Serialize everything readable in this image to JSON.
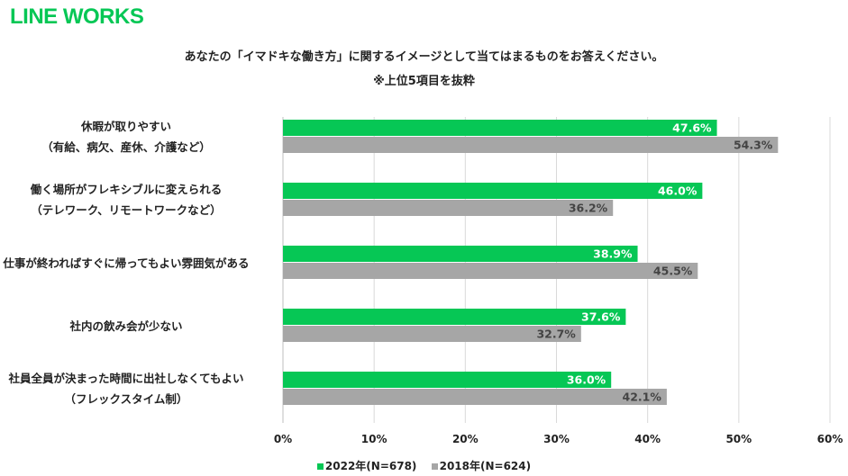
{
  "logo": "LINE WORKS",
  "chart_data": {
    "type": "bar",
    "orientation": "horizontal",
    "title": "あなたの「イマドキな働き方」に関するイメージとして当てはまるものをお答えください。",
    "subtitle": "※上位5項目を抜粋",
    "categories": [
      [
        "休暇が取りやすい",
        "（有給、病欠、産休、介護など）"
      ],
      [
        "働く場所がフレキシブルに変えられる",
        "（テレワーク、リモートワークなど）"
      ],
      [
        "仕事が終わればすぐに帰ってもよい雰囲気がある"
      ],
      [
        "社内の飲み会が少ない"
      ],
      [
        "社員全員が決まった時間に出社しなくてもよい",
        "（フレックスタイム制）"
      ]
    ],
    "series": [
      {
        "name": "2022年(N=678)",
        "color": "#06c755",
        "values": [
          47.6,
          46.0,
          38.9,
          37.6,
          36.0
        ]
      },
      {
        "name": "2018年(N=624)",
        "color": "#a6a6a6",
        "values": [
          54.3,
          36.2,
          45.5,
          32.7,
          42.1
        ]
      }
    ],
    "xlim": [
      0,
      60
    ],
    "xticks": [
      "0%",
      "10%",
      "20%",
      "30%",
      "40%",
      "50%",
      "60%"
    ],
    "grid": true,
    "legend_position": "bottom"
  }
}
